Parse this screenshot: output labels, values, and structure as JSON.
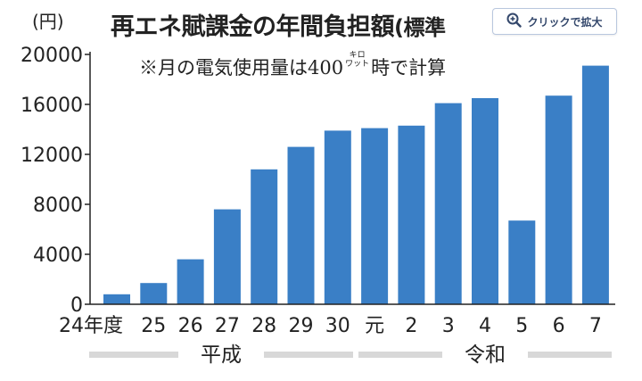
{
  "unit_label": "(円)",
  "title": "再エネ賦課金の年間負担額",
  "title_suffix": "(標準",
  "note": "※月の電気使用量は400",
  "note_unit_top": "キロ",
  "note_unit_bottom": "ワット",
  "note_tail": "時で計算",
  "zoom_button_label": "クリックで拡大",
  "zoom_icon": "zoom-in-icon",
  "bar_color": "#3a7fc6",
  "eras": [
    "平成",
    "令和"
  ],
  "chart_data": {
    "type": "bar",
    "title": "再エネ賦課金の年間負担額",
    "ylabel": "(円)",
    "ylim": [
      0,
      20000
    ],
    "yticks": [
      0,
      4000,
      8000,
      12000,
      16000,
      20000
    ],
    "categories": [
      "24年度",
      "25",
      "26",
      "27",
      "28",
      "29",
      "30",
      "元",
      "2",
      "3",
      "4",
      "5",
      "6",
      "7"
    ],
    "values": [
      800,
      1700,
      3600,
      7600,
      10800,
      12600,
      13900,
      14100,
      14300,
      16100,
      16500,
      6700,
      16700,
      19100
    ],
    "grid": false
  }
}
